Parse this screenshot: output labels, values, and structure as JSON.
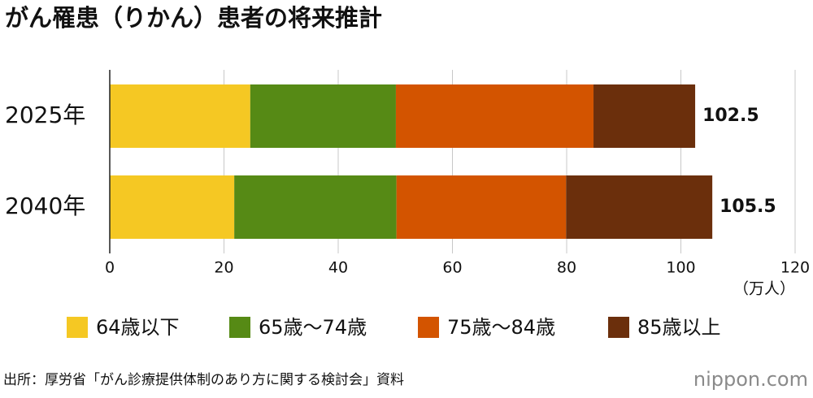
{
  "chart_data": {
    "type": "stacked-bar-horizontal",
    "title": "がん罹患（りかん）患者の将来推計",
    "categories": [
      "2025年",
      "2040年"
    ],
    "series": [
      {
        "name": "64歳以下",
        "color": "#f5c823",
        "values": [
          24.6,
          21.8
        ]
      },
      {
        "name": "65歳〜74歳",
        "color": "#568a15",
        "values": [
          25.5,
          28.4
        ]
      },
      {
        "name": "75歳〜84歳",
        "color": "#d35400",
        "values": [
          34.6,
          29.7
        ]
      },
      {
        "name": "85歳以上",
        "color": "#6b2f0c",
        "values": [
          17.8,
          25.6
        ]
      }
    ],
    "totals": [
      102.5,
      105.5
    ],
    "xlim": [
      0,
      120
    ],
    "xticks": [
      0,
      20,
      40,
      60,
      80,
      100,
      120
    ],
    "x_unit": "（万人）",
    "grid": true,
    "source": "出所：厚労省「がん診療提供体制のあり方に関する検討会」資料",
    "logo": "nippon.com"
  }
}
